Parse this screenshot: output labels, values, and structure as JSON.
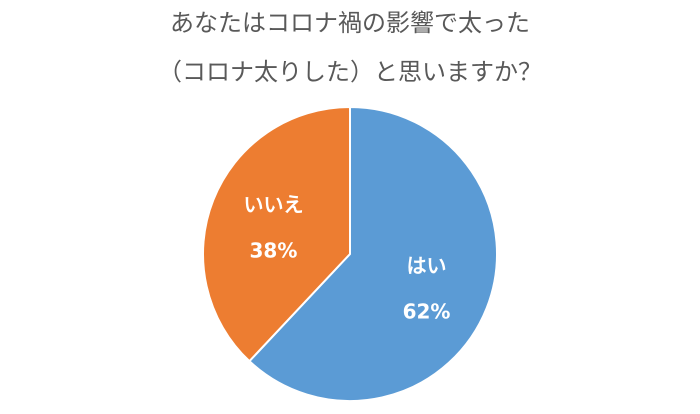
{
  "chart_data": {
    "type": "pie",
    "title_lines": [
      "あなたはコロナ禍の影響で太った",
      "（コロナ太りした）と思いますか？"
    ],
    "slices": [
      {
        "label": "はい",
        "value": 62,
        "value_label": "62%",
        "color": "#5b9bd5"
      },
      {
        "label": "いいえ",
        "value": 38,
        "value_label": "38%",
        "color": "#ed7d31"
      }
    ],
    "start_angle_deg": 0,
    "direction": "clockwise",
    "legend": "none",
    "separator_color": "#ffffff"
  }
}
